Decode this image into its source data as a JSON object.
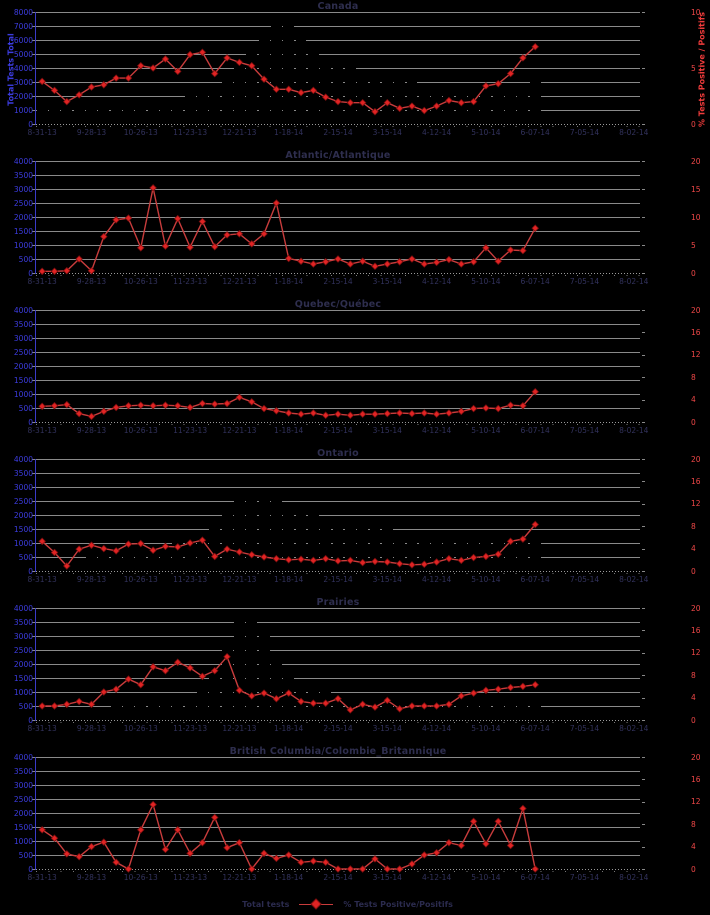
{
  "page": {
    "background": "#000000"
  },
  "colors": {
    "background": "#000000",
    "gridline": "#8a8a8a",
    "axis_line": "#3a3ac8",
    "left_axis_text": "#3c3ce0",
    "right_axis_text": "#ee4747",
    "x_axis_text": "#32325c",
    "title_text": "#2e2e4e",
    "bar_fill": "#000000",
    "line_stroke": "#c83c3c",
    "marker_fill": "#e02424",
    "marker_edge": "#7d0f0f"
  },
  "legend": {
    "total_tests_label": "Total tests",
    "pct_positive_label": "% Tests Positive/Positifs"
  },
  "weeks_total": 49,
  "x_axis_labels": [
    "8-31-13",
    "9-28-13",
    "10-26-13",
    "11-23-13",
    "12-21-13",
    "1-18-14",
    "2-15-14",
    "3-15-14",
    "4-12-14",
    "5-10-14",
    "6-07-14",
    "7-05-14",
    "8-02-14"
  ],
  "x_label_slots": [
    0,
    4,
    8,
    12,
    16,
    20,
    24,
    28,
    32,
    36,
    40,
    44,
    48
  ],
  "chart_data": [
    {
      "type": "bar",
      "title": "Canada",
      "left_axis": {
        "title": "Total Tests Total",
        "max": 8000,
        "labels": [
          "8000",
          "7000",
          "6000",
          "5000",
          "4000",
          "3000",
          "2000",
          "1000",
          "0"
        ]
      },
      "right_axis": {
        "title": "% Tests Positive / Positifs",
        "max": 10,
        "labels": [
          "10",
          "5",
          "0"
        ]
      },
      "series": [
        {
          "name": "Total tests",
          "type": "bar",
          "axis": "left",
          "values": [
            1150,
            1200,
            1100,
            1200,
            1250,
            1300,
            1350,
            1450,
            1550,
            1650,
            1750,
            1850,
            2100,
            2400,
            2800,
            3200,
            4000,
            5200,
            6800,
            7600,
            7300,
            6200,
            5300,
            4700,
            4300,
            4000,
            3800,
            3600,
            3500,
            3300,
            3100,
            2900,
            2800,
            2700,
            2600,
            2600,
            2650,
            2700,
            2750,
            2850,
            3000
          ]
        },
        {
          "name": "% Tests Positive/Positifs",
          "type": "line",
          "axis": "right",
          "values": [
            3.8,
            3.0,
            2.0,
            2.6,
            3.3,
            3.5,
            4.1,
            4.1,
            5.2,
            5.0,
            5.8,
            4.7,
            6.2,
            6.4,
            4.5,
            5.9,
            5.5,
            5.2,
            4.0,
            3.1,
            3.1,
            2.8,
            3.0,
            2.4,
            2.0,
            1.9,
            1.9,
            1.1,
            1.9,
            1.4,
            1.6,
            1.2,
            1.6,
            2.1,
            1.9,
            2.0,
            3.4,
            3.6,
            4.5,
            5.9,
            6.9
          ]
        }
      ]
    },
    {
      "type": "bar",
      "title": "Atlantic/Atlantique",
      "left_axis": {
        "max": 4000,
        "labels": [
          "4000",
          "3500",
          "3000",
          "2500",
          "2000",
          "1500",
          "1000",
          "500",
          "0"
        ]
      },
      "right_axis": {
        "max": 20,
        "labels": [
          "20",
          "15",
          "10",
          "5",
          "0"
        ]
      },
      "series": [
        {
          "name": "Total tests",
          "type": "bar",
          "axis": "left",
          "values": [
            60,
            65,
            70,
            75,
            80,
            90,
            100,
            110,
            120,
            135,
            150,
            170,
            190,
            220,
            260,
            300,
            340,
            370,
            350,
            320,
            290,
            260,
            240,
            220,
            200,
            190,
            180,
            170,
            160,
            155,
            150,
            145,
            140,
            140,
            138,
            136,
            135,
            135,
            138,
            140,
            142
          ]
        },
        {
          "name": "% Tests Positive/Positifs",
          "type": "line",
          "axis": "right",
          "values": [
            0.3,
            0.3,
            0.4,
            2.5,
            0.4,
            6.5,
            9.5,
            9.8,
            4.5,
            15.2,
            4.8,
            9.7,
            4.6,
            9.2,
            4.7,
            6.8,
            7.0,
            5.2,
            7.0,
            12.5,
            2.6,
            2.1,
            1.6,
            2.0,
            2.5,
            1.6,
            2.1,
            1.2,
            1.6,
            2.0,
            2.5,
            1.6,
            1.9,
            2.4,
            1.6,
            2.0,
            4.5,
            2.1,
            4.1,
            4.0,
            8.0
          ]
        }
      ]
    },
    {
      "type": "bar",
      "title": "Quebec/Québec",
      "left_axis": {
        "max": 4000,
        "labels": [
          "4000",
          "3500",
          "3000",
          "2500",
          "2000",
          "1500",
          "1000",
          "500",
          "0"
        ]
      },
      "right_axis": {
        "max": 20,
        "labels": [
          "20",
          "16",
          "12",
          "8",
          "4",
          "0"
        ]
      },
      "series": [
        {
          "name": "Total tests",
          "type": "bar",
          "axis": "left",
          "values": [
            180,
            190,
            180,
            190,
            200,
            210,
            220,
            230,
            240,
            260,
            280,
            300,
            320,
            350,
            380,
            420,
            450,
            430,
            400,
            370,
            340,
            320,
            300,
            290,
            280,
            270,
            260,
            250,
            240,
            230,
            220,
            210,
            200,
            200,
            195,
            190,
            190,
            195,
            200,
            210,
            220
          ]
        },
        {
          "name": "% Tests Positive/Positifs",
          "type": "line",
          "axis": "right",
          "values": [
            2.8,
            2.9,
            3.1,
            1.5,
            1.0,
            1.9,
            2.6,
            2.9,
            3.0,
            2.9,
            3.0,
            2.9,
            2.6,
            3.3,
            3.2,
            3.3,
            4.4,
            3.6,
            2.4,
            2.0,
            1.6,
            1.4,
            1.6,
            1.2,
            1.4,
            1.2,
            1.4,
            1.4,
            1.5,
            1.6,
            1.5,
            1.6,
            1.4,
            1.6,
            1.9,
            2.4,
            2.5,
            2.4,
            3.0,
            2.9,
            5.4
          ]
        }
      ]
    },
    {
      "type": "bar",
      "title": "Ontario",
      "left_axis": {
        "max": 4000,
        "labels": [
          "4000",
          "3500",
          "3000",
          "2500",
          "2000",
          "1500",
          "1000",
          "500",
          "0"
        ]
      },
      "right_axis": {
        "max": 20,
        "labels": [
          "20",
          "16",
          "12",
          "8",
          "4",
          "0"
        ]
      },
      "series": [
        {
          "name": "Total tests",
          "type": "bar",
          "axis": "left",
          "values": [
            420,
            450,
            430,
            460,
            500,
            550,
            600,
            650,
            700,
            800,
            900,
            1000,
            1150,
            1350,
            1700,
            2100,
            2500,
            2800,
            2900,
            2700,
            2450,
            2250,
            2100,
            1950,
            1850,
            1750,
            1650,
            1550,
            1500,
            1400,
            1350,
            1300,
            1250,
            1200,
            1150,
            1100,
            1100,
            1100,
            1150,
            1200,
            1250
          ]
        },
        {
          "name": "% Tests Positive/Positifs",
          "type": "line",
          "axis": "right",
          "values": [
            5.3,
            3.3,
            0.9,
            3.9,
            4.6,
            4.0,
            3.6,
            4.8,
            4.9,
            3.7,
            4.4,
            4.3,
            5.0,
            5.5,
            2.6,
            3.9,
            3.4,
            2.9,
            2.5,
            2.2,
            2.0,
            2.1,
            1.9,
            2.2,
            1.8,
            1.9,
            1.5,
            1.7,
            1.6,
            1.3,
            1.1,
            1.2,
            1.6,
            2.2,
            1.9,
            2.4,
            2.6,
            3.0,
            5.3,
            5.7,
            8.3
          ]
        }
      ]
    },
    {
      "type": "bar",
      "title": "Prairies",
      "left_axis": {
        "max": 4000,
        "labels": [
          "4000",
          "3500",
          "3000",
          "2500",
          "2000",
          "1500",
          "1000",
          "500",
          "0"
        ]
      },
      "right_axis": {
        "max": 20,
        "labels": [
          "20",
          "16",
          "12",
          "8",
          "4",
          "0"
        ]
      },
      "series": [
        {
          "name": "Total tests",
          "type": "bar",
          "axis": "left",
          "values": [
            300,
            320,
            340,
            360,
            400,
            450,
            500,
            560,
            620,
            700,
            780,
            850,
            950,
            1100,
            1600,
            2800,
            3850,
            3900,
            3000,
            2200,
            1700,
            1400,
            1150,
            1000,
            900,
            850,
            820,
            800,
            780,
            770,
            760,
            750,
            740,
            740,
            745,
            750,
            755,
            760,
            770,
            780,
            800
          ]
        },
        {
          "name": "% Tests Positive/Positifs",
          "type": "line",
          "axis": "right",
          "values": [
            2.5,
            2.5,
            2.8,
            3.3,
            2.8,
            5.0,
            5.5,
            7.3,
            6.3,
            9.5,
            8.8,
            10.3,
            9.3,
            7.8,
            8.8,
            11.3,
            5.3,
            4.3,
            4.8,
            3.8,
            4.8,
            3.3,
            3.0,
            3.0,
            3.8,
            1.8,
            2.8,
            2.3,
            3.5,
            2.0,
            2.5,
            2.5,
            2.5,
            2.8,
            4.3,
            4.8,
            5.3,
            5.5,
            5.8,
            6.0,
            6.3
          ]
        }
      ]
    },
    {
      "type": "bar",
      "title": "British Columbia/Colombie_Britannique",
      "left_axis": {
        "max": 4000,
        "labels": [
          "4000",
          "3500",
          "3000",
          "2500",
          "2000",
          "1500",
          "1000",
          "500",
          "0"
        ]
      },
      "right_axis": {
        "max": 20,
        "labels": [
          "20",
          "16",
          "12",
          "8",
          "4",
          "0"
        ]
      },
      "series": [
        {
          "name": "Total tests",
          "type": "bar",
          "axis": "left",
          "values": [
            150,
            160,
            155,
            165,
            170,
            180,
            190,
            200,
            210,
            230,
            250,
            280,
            310,
            350,
            390,
            430,
            460,
            440,
            410,
            380,
            350,
            320,
            300,
            280,
            260,
            250,
            240,
            230,
            220,
            215,
            210,
            205,
            200,
            200,
            205,
            210,
            215,
            220,
            225,
            230,
            235
          ]
        },
        {
          "name": "% Tests Positive/Positifs",
          "type": "line",
          "axis": "right",
          "values": [
            7.0,
            5.5,
            2.7,
            2.2,
            4.0,
            4.8,
            1.2,
            0.0,
            7.0,
            11.5,
            3.5,
            7.0,
            2.8,
            4.7,
            9.2,
            3.8,
            4.7,
            0.0,
            2.8,
            1.9,
            2.5,
            1.2,
            1.4,
            1.2,
            0.0,
            0.0,
            0.0,
            1.8,
            0.0,
            0.0,
            0.9,
            2.5,
            2.9,
            4.7,
            4.2,
            8.5,
            4.5,
            8.5,
            4.2,
            10.8,
            0.0
          ]
        }
      ]
    }
  ]
}
